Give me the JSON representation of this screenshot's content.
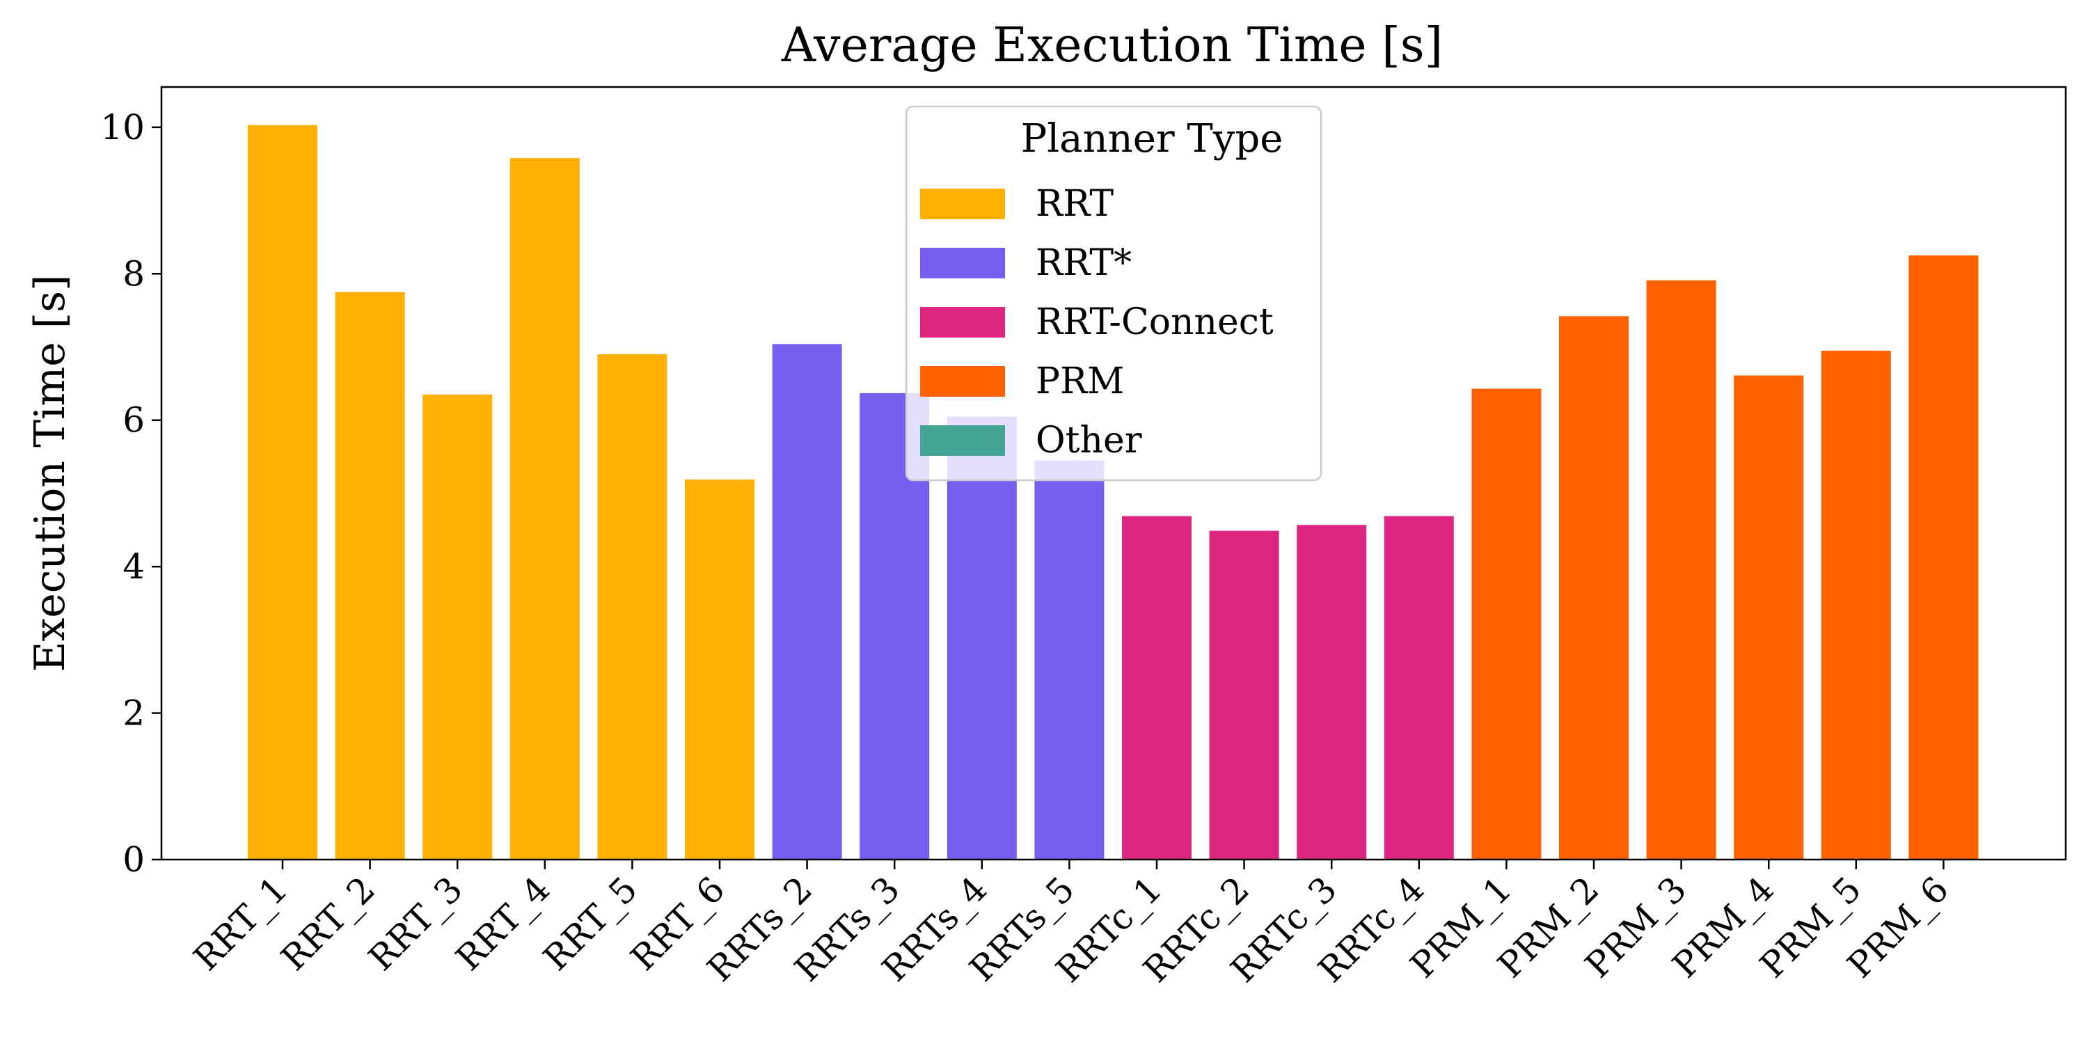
{
  "chart_data": {
    "type": "bar",
    "title": "Average Execution Time [s]",
    "ylabel": "Execution Time [s]",
    "xlabel": "",
    "ylim": [
      0,
      10.55
    ],
    "yticks": [
      0,
      2,
      4,
      6,
      8,
      10
    ],
    "grid": false,
    "legend": {
      "title": "Planner Type",
      "placement": "top-center",
      "entries": [
        {
          "name": "RRT",
          "color": "#FFB000"
        },
        {
          "name": "RRT*",
          "color": "#785EF0"
        },
        {
          "name": "RRT-Connect",
          "color": "#DC267F"
        },
        {
          "name": "PRM",
          "color": "#FE6100"
        },
        {
          "name": "Other",
          "color": "#44A597"
        }
      ]
    },
    "categories": [
      "RRT_1",
      "RRT_2",
      "RRT_3",
      "RRT_4",
      "RRT_5",
      "RRT_6",
      "RRTs_2",
      "RRTs_3",
      "RRTs_4",
      "RRTs_5",
      "RRTc_1",
      "RRTc_2",
      "RRTc_3",
      "RRTc_4",
      "PRM_1",
      "PRM_2",
      "PRM_3",
      "PRM_4",
      "PRM_5",
      "PRM_6"
    ],
    "values": [
      10.03,
      7.75,
      6.35,
      9.58,
      6.9,
      5.19,
      7.04,
      6.37,
      6.05,
      5.45,
      4.69,
      4.49,
      4.57,
      4.69,
      6.43,
      7.42,
      7.91,
      6.61,
      6.95,
      8.25
    ],
    "groups": [
      "RRT",
      "RRT",
      "RRT",
      "RRT",
      "RRT",
      "RRT",
      "RRT*",
      "RRT*",
      "RRT*",
      "RRT*",
      "RRT-Connect",
      "RRT-Connect",
      "RRT-Connect",
      "RRT-Connect",
      "PRM",
      "PRM",
      "PRM",
      "PRM",
      "PRM",
      "PRM"
    ]
  }
}
